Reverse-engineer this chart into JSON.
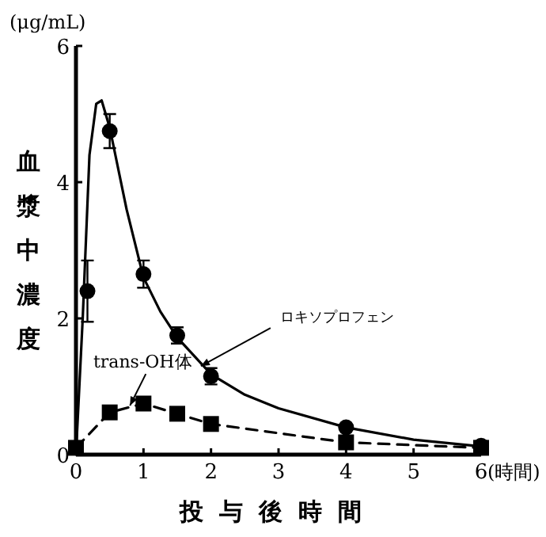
{
  "chart_data": {
    "type": "line",
    "xlabel": "投与後時間",
    "ylabel": "血漿中濃度",
    "xlim": [
      0,
      6
    ],
    "ylim": [
      0,
      6
    ],
    "xticks": [
      0,
      1,
      2,
      3,
      4,
      5,
      6
    ],
    "yticks": [
      0,
      2,
      4,
      6
    ],
    "grid": false,
    "series": [
      {
        "type": "line",
        "color": "#000000",
        "line_style": "solid",
        "marker": "none",
        "x": [
          0,
          0.1,
          0.2,
          0.3,
          0.38,
          0.5,
          0.75,
          1,
          1.25,
          1.5,
          2,
          2.5,
          3,
          4,
          5,
          6
        ],
        "values": [
          0,
          2.0,
          4.4,
          5.15,
          5.2,
          4.8,
          3.6,
          2.6,
          2.1,
          1.72,
          1.18,
          0.88,
          0.68,
          0.4,
          0.22,
          0.12
        ]
      },
      {
        "type": "line",
        "color": "#000000",
        "line_style": "dashed",
        "marker": "square",
        "x": [
          0,
          0.5,
          1,
          1.5,
          2,
          4,
          6
        ],
        "values": [
          0.1,
          0.62,
          0.75,
          0.6,
          0.45,
          0.18,
          0.1
        ]
      },
      {
        "type": "scatter",
        "color": "#000000",
        "marker": "circle",
        "x": [
          0.17,
          0.5,
          1,
          1.5,
          2,
          4,
          6
        ],
        "values": [
          2.4,
          4.75,
          2.65,
          1.75,
          1.15,
          0.4,
          0.13
        ],
        "errors": [
          0.45,
          0.25,
          0.2,
          0.12,
          0.12,
          null,
          null
        ]
      }
    ],
    "annotations": [
      {
        "text": "ロキソプロフェン",
        "x": 1.85,
        "y": 1.3
      },
      {
        "text": "trans-OH体",
        "x": 0.8,
        "y": 0.72
      },
      "(μg/mL)",
      "(時間)"
    ]
  }
}
